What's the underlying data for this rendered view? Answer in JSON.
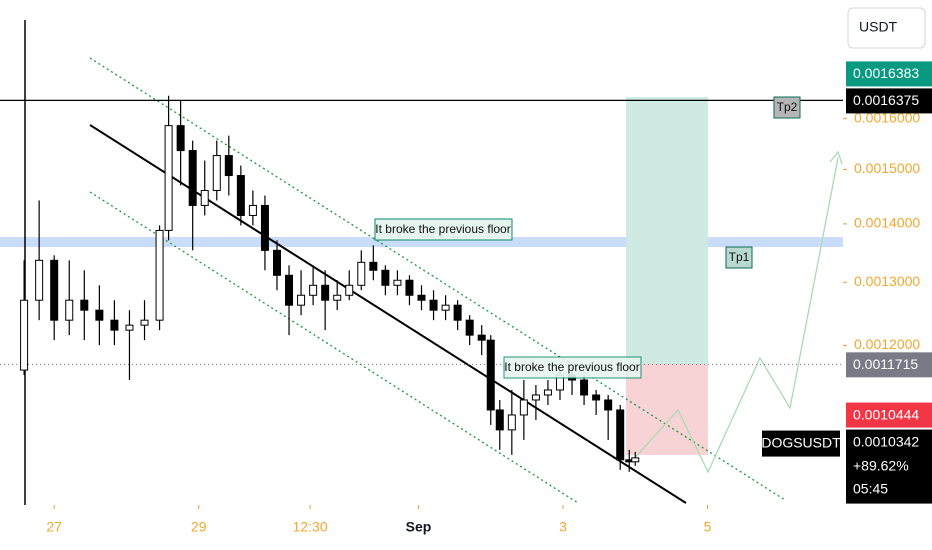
{
  "chart_data": {
    "type": "candlestick",
    "symbol": "DOGSUSDT",
    "currency": "USDT",
    "change": "+89.62%",
    "countdown": "05:45",
    "y_scale": "log",
    "ylim": [
      0.00098,
      0.00186
    ],
    "xlim": [
      0,
      280
    ],
    "yticks": [
      {
        "value": 0.0012,
        "label": "0.0012000"
      },
      {
        "value": 0.0013,
        "label": "0.0013000"
      },
      {
        "value": 0.0014,
        "label": "0.0014000"
      },
      {
        "value": 0.0015,
        "label": "0.0015000"
      },
      {
        "value": 0.0016,
        "label": "0.0016000"
      }
    ],
    "xticks": [
      {
        "value": 18,
        "label": "27"
      },
      {
        "value": 66,
        "label": "29"
      },
      {
        "value": 103,
        "label": "12:30"
      },
      {
        "value": 139,
        "label": "Sep",
        "bold": true
      },
      {
        "value": 187,
        "label": "3"
      },
      {
        "value": 235,
        "label": "5"
      }
    ],
    "up_color": "#ffffff",
    "down_color": "#000000",
    "candles": {
      "x": [
        8,
        13,
        18,
        23,
        28,
        33,
        38,
        43,
        48,
        53,
        56,
        60,
        64,
        68,
        72,
        76,
        80,
        84,
        88,
        92,
        96,
        100,
        104,
        108,
        112,
        116,
        120,
        124,
        128,
        132,
        136,
        140,
        144,
        148,
        152,
        156,
        160,
        163,
        166,
        170,
        174,
        178,
        182,
        186,
        190,
        194,
        198,
        202,
        206,
        209,
        211
      ],
      "open": [
        0.001163,
        0.0012708,
        0.0013368,
        0.001239,
        0.0012708,
        0.0012548,
        0.001239,
        0.0012234,
        0.0012312,
        0.001239,
        0.0013885,
        0.0015859,
        0.0015365,
        0.0014332,
        0.0014606,
        0.0015268,
        0.0014886,
        0.0014151,
        0.0014332,
        0.0013538,
        0.0013116,
        0.0012628,
        0.0012788,
        0.0012951,
        0.0012708,
        0.0012788,
        0.0012951,
        0.0013334,
        0.00132,
        0.0012951,
        0.0013034,
        0.0012788,
        0.0012708,
        0.0012548,
        0.0012628,
        0.001239,
        0.0012157,
        0.001208,
        0.0011056,
        0.001078,
        0.0010986,
        0.0011197,
        0.0011268,
        0.001134,
        0.0011557,
        0.0011484,
        0.0011268,
        0.0011197,
        0.0011056,
        0.0010378,
        0.0010352
      ],
      "high": [
        0.0013368,
        0.0014423,
        0.0013453,
        0.0013368,
        0.00132,
        0.0012951,
        0.0012708,
        0.0012548,
        0.0012708,
        0.0013973,
        0.0016473,
        0.0016369,
        0.0015561,
        0.0015172,
        0.0015561,
        0.0015659,
        0.0015076,
        0.0014606,
        0.0014514,
        0.0013711,
        0.0013283,
        0.00132,
        0.0013283,
        0.00132,
        0.0013034,
        0.00132,
        0.0013538,
        0.0013624,
        0.0013283,
        0.00132,
        0.0013116,
        0.0012951,
        0.001287,
        0.0012788,
        0.0012708,
        0.0012469,
        0.0012312,
        0.0012157,
        0.0011197,
        0.001134,
        0.0011484,
        0.0011412,
        0.0011484,
        0.001163,
        0.001166,
        0.0011557,
        0.001134,
        0.0011268,
        0.0011126,
        0.001051,
        0.0010484
      ],
      "low": [
        0.0011557,
        0.001239,
        0.001208,
        0.0012157,
        0.001208,
        0.0012004,
        0.0012004,
        0.0011484,
        0.001208,
        0.0012234,
        0.0013711,
        0.0014699,
        0.0013538,
        0.0014151,
        0.0014423,
        0.0014514,
        0.0013973,
        0.0013973,
        0.00132,
        0.001287,
        0.0012157,
        0.0012469,
        0.0012628,
        0.0012234,
        0.0012548,
        0.0012708,
        0.001287,
        0.0013034,
        0.0012788,
        0.0012788,
        0.0012628,
        0.0012548,
        0.001239,
        0.001239,
        0.0012234,
        0.0012004,
        0.0011853,
        0.0010848,
        0.001051,
        0.0010444,
        0.0010644,
        0.0010917,
        0.0011126,
        0.0011197,
        0.0011268,
        0.0011126,
        0.0010986,
        0.0010644,
        0.0010247,
        0.0010221,
        0.0010299
      ],
      "close": [
        0.0012708,
        0.0013368,
        0.001239,
        0.0012708,
        0.0012548,
        0.001239,
        0.0012234,
        0.0012312,
        0.001239,
        0.0013885,
        0.0015859,
        0.0015365,
        0.0014332,
        0.0014606,
        0.0015268,
        0.0014886,
        0.0014151,
        0.0014332,
        0.0013538,
        0.0013116,
        0.0012628,
        0.0012788,
        0.0012951,
        0.0012708,
        0.0012788,
        0.0012951,
        0.0013334,
        0.00132,
        0.0012951,
        0.0013034,
        0.0012788,
        0.0012708,
        0.0012548,
        0.0012628,
        0.001239,
        0.0012157,
        0.001208,
        0.0011056,
        0.001078,
        0.0010986,
        0.0011197,
        0.0011268,
        0.001134,
        0.0011557,
        0.0011484,
        0.0011268,
        0.0011197,
        0.0011056,
        0.0010378,
        0.0010352,
        0.0010404
      ]
    },
    "price_lines": [
      {
        "value": 0.0010342,
        "color": "#000000",
        "current": true
      },
      {
        "value": 0.0010444,
        "color": "#f23645"
      },
      {
        "value": 0.0011715,
        "color": "#787b86",
        "line": "dotted"
      },
      {
        "value": 0.0016375,
        "color": "#000000",
        "line": "solid"
      },
      {
        "value": 0.0016383,
        "color": "#089981"
      }
    ],
    "annotations": [
      {
        "text": "It broke the previous floor"
      },
      {
        "text": "It broke the previous floor"
      },
      {
        "text": "Tp1"
      },
      {
        "text": "Tp2"
      }
    ]
  }
}
